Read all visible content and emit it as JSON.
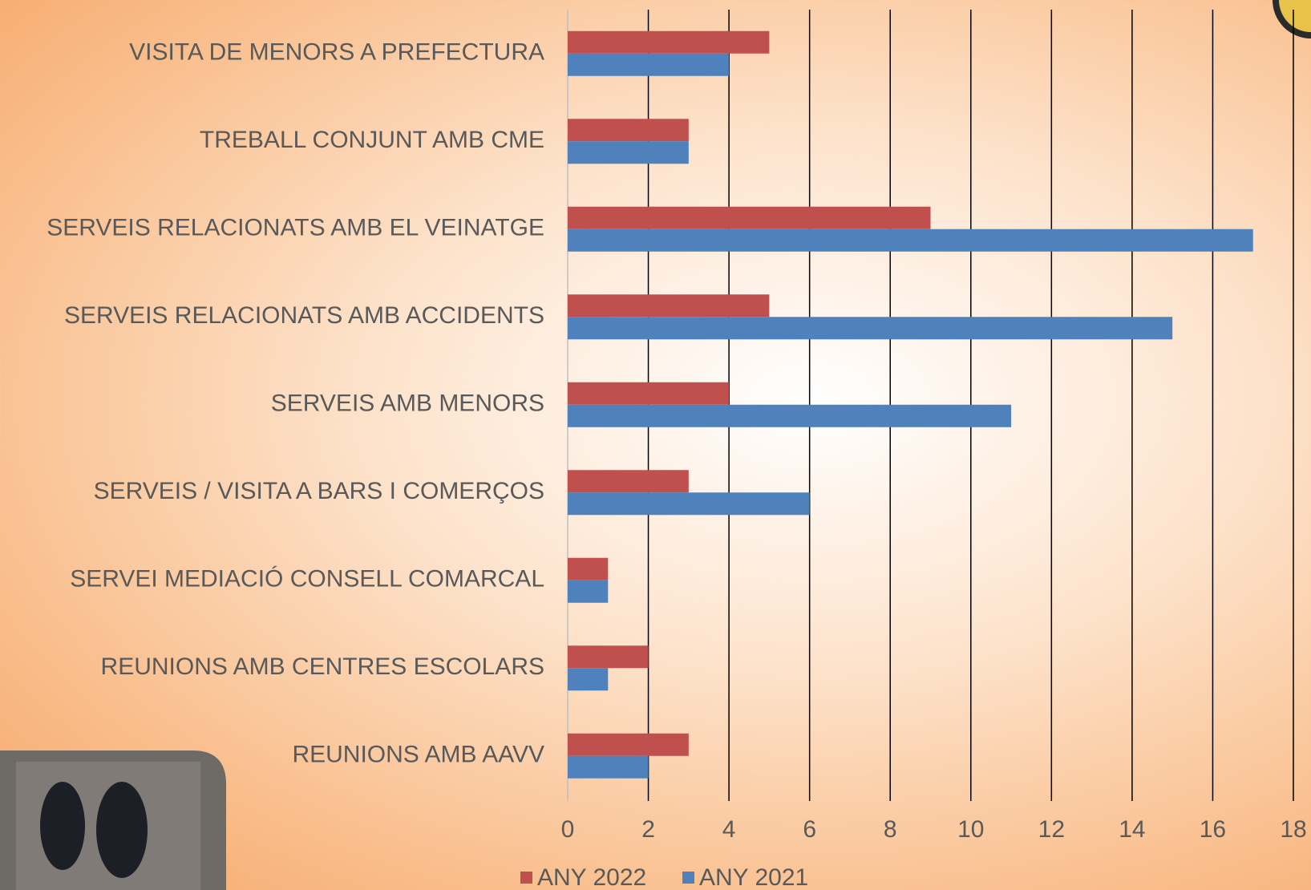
{
  "chart_data": {
    "type": "bar",
    "orientation": "horizontal",
    "categories": [
      "VISITA DE MENORS A PREFECTURA",
      "TREBALL CONJUNT AMB CME",
      "SERVEIS RELACIONATS AMB EL VEINATGE",
      "SERVEIS RELACIONATS AMB ACCIDENTS",
      "SERVEIS AMB MENORS",
      "SERVEIS / VISITA A BARS I COMERÇOS",
      "SERVEI MEDIACIÓ CONSELL COMARCAL",
      "REUNIONS AMB CENTRES ESCOLARS",
      "REUNIONS AMB AAVV"
    ],
    "series": [
      {
        "name": "ANY 2022",
        "color": "#c0504d",
        "values": [
          5,
          3,
          9,
          5,
          4,
          3,
          1,
          2,
          3
        ]
      },
      {
        "name": "ANY 2021",
        "color": "#4f81bd",
        "values": [
          4,
          3,
          17,
          15,
          11,
          6,
          1,
          1,
          2
        ]
      }
    ],
    "xlim": [
      0,
      18
    ],
    "xticks": [
      0,
      2,
      4,
      6,
      8,
      10,
      12,
      14,
      16,
      18
    ],
    "grid": true,
    "legend": "bottom"
  }
}
